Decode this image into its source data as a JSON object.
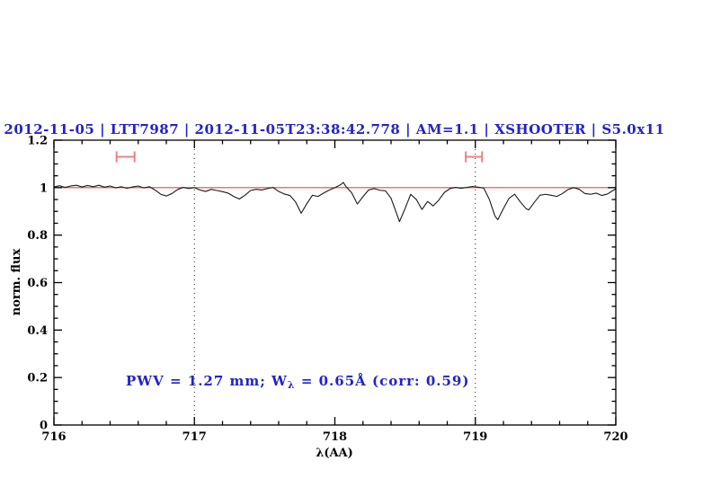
{
  "chart_data": {
    "type": "line",
    "title": "2012-11-05 | LTT7987 | 2012-11-05T23:38:42.778 | AM=1.1 | XSHOOTER | S5.0x11",
    "xlabel": "λ(AA)",
    "ylabel": "norm. flux",
    "xlim": [
      716,
      720
    ],
    "ylim": [
      0,
      1.2
    ],
    "x_major_ticks": [
      716,
      717,
      718,
      719,
      720
    ],
    "x_tick_labels": [
      "716",
      "717",
      "718",
      "719",
      "720"
    ],
    "x_minor_step": 0.2,
    "y_major_ticks": [
      0,
      0.2,
      0.4,
      0.6,
      0.8,
      1,
      1.2
    ],
    "y_tick_labels": [
      "0",
      "0.2",
      "0.4",
      "0.6",
      "0.8",
      "1",
      "1.2"
    ],
    "y_minor_step": 0.05,
    "grid": "off",
    "dotted_vlines_x": [
      717,
      719
    ],
    "continuum_line": {
      "y": 1.0,
      "color": "#f04040"
    },
    "range_markers": [
      {
        "x": 716.51,
        "y": 1.13,
        "halfwidth": 0.064,
        "cap_halfheight": 0.023
      },
      {
        "x": 718.99,
        "y": 1.13,
        "halfwidth": 0.058,
        "cap_halfheight": 0.023
      }
    ],
    "marker_color": "#f08080",
    "annotation": {
      "pre": "PWV = 1.27 mm; W",
      "sub": "λ",
      "post": " = 0.65Å (corr: 0.59)",
      "color": "#2222cc"
    },
    "series": [
      {
        "name": "spectrum",
        "color": "#1a1a1a",
        "points": [
          [
            716.0,
            1.003
          ],
          [
            716.04,
            1.008
          ],
          [
            716.08,
            1.001
          ],
          [
            716.12,
            1.007
          ],
          [
            716.16,
            1.01
          ],
          [
            716.2,
            1.003
          ],
          [
            716.24,
            1.009
          ],
          [
            716.28,
            1.004
          ],
          [
            716.32,
            1.01
          ],
          [
            716.36,
            1.002
          ],
          [
            716.4,
            1.007
          ],
          [
            716.44,
            0.999
          ],
          [
            716.48,
            1.004
          ],
          [
            716.52,
            0.997
          ],
          [
            716.56,
            1.003
          ],
          [
            716.6,
            1.007
          ],
          [
            716.64,
            0.999
          ],
          [
            716.68,
            1.004
          ],
          [
            716.72,
            0.99
          ],
          [
            716.76,
            0.972
          ],
          [
            716.8,
            0.965
          ],
          [
            716.84,
            0.975
          ],
          [
            716.88,
            0.992
          ],
          [
            716.92,
            1.001
          ],
          [
            716.96,
            0.996
          ],
          [
            717.0,
            1.0
          ],
          [
            717.04,
            0.99
          ],
          [
            717.08,
            0.984
          ],
          [
            717.12,
            0.993
          ],
          [
            717.16,
            0.988
          ],
          [
            717.2,
            0.983
          ],
          [
            717.24,
            0.977
          ],
          [
            717.28,
            0.963
          ],
          [
            717.32,
            0.952
          ],
          [
            717.36,
            0.968
          ],
          [
            717.4,
            0.988
          ],
          [
            717.44,
            0.993
          ],
          [
            717.48,
            0.99
          ],
          [
            717.52,
            0.996
          ],
          [
            717.56,
            1.001
          ],
          [
            717.6,
            0.984
          ],
          [
            717.64,
            0.973
          ],
          [
            717.68,
            0.967
          ],
          [
            717.72,
            0.94
          ],
          [
            717.76,
            0.892
          ],
          [
            717.8,
            0.932
          ],
          [
            717.84,
            0.968
          ],
          [
            717.88,
            0.963
          ],
          [
            717.92,
            0.977
          ],
          [
            717.96,
            0.99
          ],
          [
            718.0,
            1.0
          ],
          [
            718.04,
            1.012
          ],
          [
            718.06,
            1.022
          ],
          [
            718.08,
            1.004
          ],
          [
            718.12,
            0.978
          ],
          [
            718.16,
            0.931
          ],
          [
            718.2,
            0.962
          ],
          [
            718.24,
            0.99
          ],
          [
            718.28,
            0.996
          ],
          [
            718.32,
            0.989
          ],
          [
            718.36,
            0.987
          ],
          [
            718.4,
            0.955
          ],
          [
            718.44,
            0.89
          ],
          [
            718.46,
            0.857
          ],
          [
            718.5,
            0.912
          ],
          [
            718.54,
            0.972
          ],
          [
            718.58,
            0.95
          ],
          [
            718.62,
            0.908
          ],
          [
            718.66,
            0.942
          ],
          [
            718.7,
            0.923
          ],
          [
            718.74,
            0.948
          ],
          [
            718.78,
            0.98
          ],
          [
            718.82,
            0.996
          ],
          [
            718.86,
            1.001
          ],
          [
            718.9,
            0.997
          ],
          [
            718.94,
            1.001
          ],
          [
            718.98,
            1.005
          ],
          [
            719.02,
            1.002
          ],
          [
            719.06,
            0.998
          ],
          [
            719.1,
            0.95
          ],
          [
            719.14,
            0.88
          ],
          [
            719.16,
            0.865
          ],
          [
            719.2,
            0.912
          ],
          [
            719.24,
            0.955
          ],
          [
            719.28,
            0.972
          ],
          [
            719.32,
            0.94
          ],
          [
            719.36,
            0.912
          ],
          [
            719.38,
            0.906
          ],
          [
            719.42,
            0.938
          ],
          [
            719.46,
            0.968
          ],
          [
            719.5,
            0.972
          ],
          [
            719.54,
            0.968
          ],
          [
            719.58,
            0.963
          ],
          [
            719.62,
            0.975
          ],
          [
            719.66,
            0.992
          ],
          [
            719.7,
            1.0
          ],
          [
            719.74,
            0.993
          ],
          [
            719.78,
            0.975
          ],
          [
            719.82,
            0.972
          ],
          [
            719.86,
            0.977
          ],
          [
            719.9,
            0.967
          ],
          [
            719.94,
            0.973
          ],
          [
            719.98,
            0.988
          ],
          [
            720.0,
            0.995
          ]
        ]
      }
    ],
    "frame_color": "#000000"
  }
}
